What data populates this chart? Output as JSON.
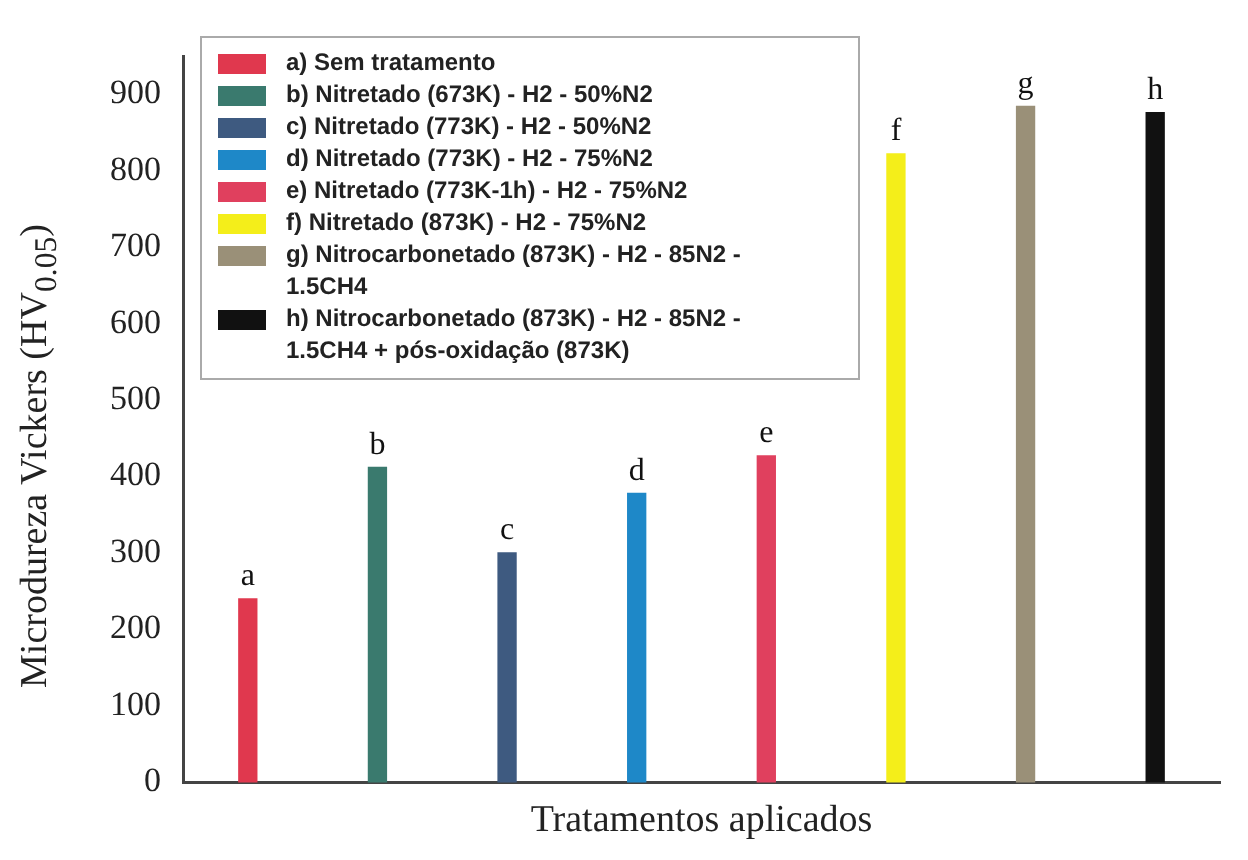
{
  "chart_data": {
    "type": "bar",
    "xlabel": "Tratamentos aplicados",
    "ylabel": "Microdureza Vickers (HV$_{0.05}$)",
    "categories": [
      null,
      null,
      null,
      null,
      null,
      null,
      null,
      null
    ],
    "ylim": [
      0,
      950
    ],
    "yticks": [
      0,
      100,
      200,
      300,
      400,
      500,
      600,
      700,
      800,
      900
    ],
    "tick_labels": "y",
    "legend": "top left",
    "series": [
      {
        "name": "a) Sem tratamento",
        "color": "#e0384e",
        "values": [
          240,
          null,
          null,
          null,
          null,
          null,
          null,
          null
        ],
        "value_labels": [
          "a",
          null,
          null,
          null,
          null,
          null,
          null,
          null
        ]
      },
      {
        "name": "b) Nitretado (673K) - H2 - 50%N2",
        "color": "#3a7a6e",
        "values": [
          null,
          412,
          null,
          null,
          null,
          null,
          null,
          null
        ],
        "value_labels": [
          null,
          "b",
          null,
          null,
          null,
          null,
          null,
          null
        ]
      },
      {
        "name": "c) Nitretado (773K) - H2 - 50%N2",
        "color": "#3e5a80",
        "values": [
          null,
          null,
          300,
          null,
          null,
          null,
          null,
          null
        ],
        "value_labels": [
          null,
          null,
          "c",
          null,
          null,
          null,
          null,
          null
        ]
      },
      {
        "name": "d) Nitretado (773K) - H2 - 75%N2",
        "color": "#1e88c8",
        "values": [
          null,
          null,
          null,
          378,
          null,
          null,
          null,
          null
        ],
        "value_labels": [
          null,
          null,
          null,
          "d",
          null,
          null,
          null,
          null
        ]
      },
      {
        "name": "e) Nitretado (773K-1h) - H2 - 75%N2",
        "color": "#e0405e",
        "values": [
          null,
          null,
          null,
          null,
          427,
          null,
          null,
          null
        ],
        "value_labels": [
          null,
          null,
          null,
          null,
          "e",
          null,
          null,
          null
        ]
      },
      {
        "name": "f) Nitretado (873K) - H2 - 75%N2",
        "color": "#f4ee1a",
        "values": [
          null,
          null,
          null,
          null,
          null,
          822,
          null,
          null
        ],
        "value_labels": [
          null,
          null,
          null,
          null,
          null,
          "f",
          null,
          null
        ]
      },
      {
        "name": "g) Nitrocarbonetado (873K) - H2 - 85N2 - 1.5CH4",
        "color": "#9a9078",
        "values": [
          null,
          null,
          null,
          null,
          null,
          null,
          884,
          null
        ],
        "value_labels": [
          null,
          null,
          null,
          null,
          null,
          null,
          "g",
          null
        ]
      },
      {
        "name": "h) Nitrocarbonetado (873K) - H2 - 85N2 - 1.5CH4 + pós-oxidação (873K)",
        "color": "#111111",
        "values": [
          null,
          null,
          null,
          null,
          null,
          null,
          null,
          876
        ],
        "value_labels": [
          null,
          null,
          null,
          null,
          null,
          null,
          null,
          "h"
        ]
      }
    ]
  }
}
